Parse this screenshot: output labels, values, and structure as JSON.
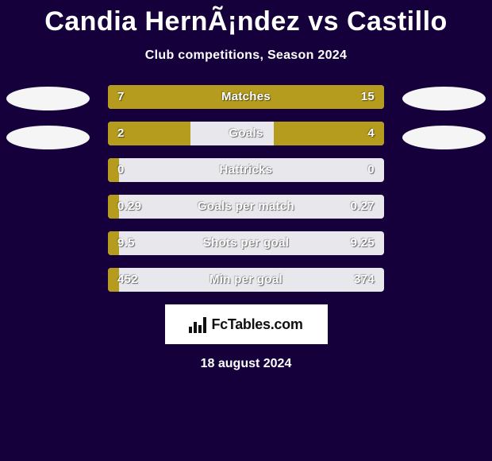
{
  "title": "Candia HernÃ¡ndez vs Castillo",
  "subtitle": "Club competitions, Season 2024",
  "date": "18 august 2024",
  "logo_text": "FcTables.com",
  "colors": {
    "left_fill": "#b59c1f",
    "right_fill": "#b59c1f",
    "bar_bg": "#e8e7ec",
    "oval_bg": "#f5f5f5",
    "page_bg": "#15003c"
  },
  "ovals": {
    "rows_visible": [
      0,
      1
    ]
  },
  "stats": [
    {
      "label": "Matches",
      "left_value": "7",
      "right_value": "15",
      "left_pct": 31,
      "right_pct": 69
    },
    {
      "label": "Goals",
      "left_value": "2",
      "right_value": "4",
      "left_pct": 30,
      "right_pct": 40
    },
    {
      "label": "Hattricks",
      "left_value": "0",
      "right_value": "0",
      "left_pct": 4,
      "right_pct": 0
    },
    {
      "label": "Goals per match",
      "left_value": "0.29",
      "right_value": "0.27",
      "left_pct": 4,
      "right_pct": 0
    },
    {
      "label": "Shots per goal",
      "left_value": "9.5",
      "right_value": "9.25",
      "left_pct": 4,
      "right_pct": 0
    },
    {
      "label": "Min per goal",
      "left_value": "452",
      "right_value": "374",
      "left_pct": 4,
      "right_pct": 0
    }
  ]
}
